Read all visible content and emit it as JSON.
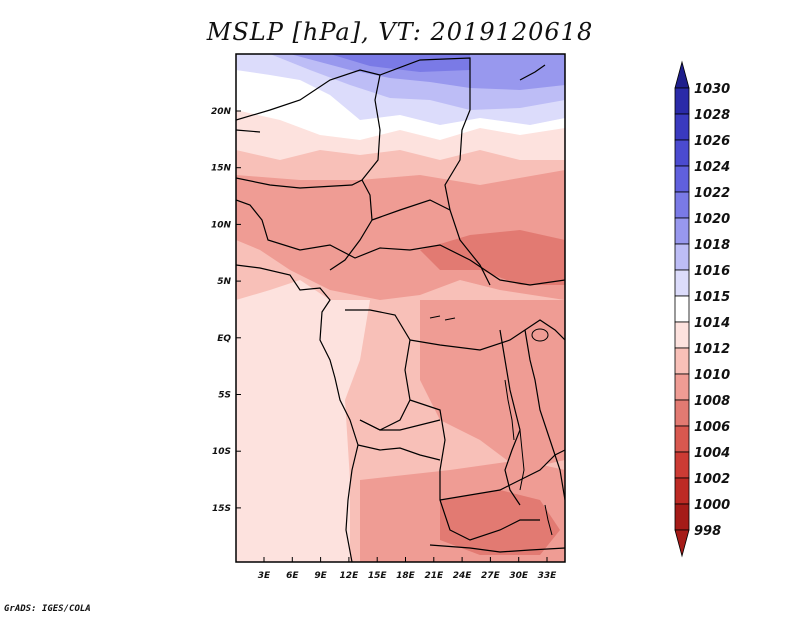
{
  "title": "MSLP [hPa], VT: 2019120618",
  "credit": "GrADS: IGES/COLA",
  "map": {
    "lat_labels": [
      "20N",
      "15N",
      "10N",
      "5N",
      "EQ",
      "5S",
      "10S",
      "15S"
    ],
    "lon_labels": [
      "3E",
      "6E",
      "9E",
      "12E",
      "15E",
      "18E",
      "21E",
      "24E",
      "27E",
      "30E",
      "33E"
    ],
    "high_pressure_region": "north",
    "low_pressure_regions": [
      "central",
      "southeast"
    ]
  },
  "colorbar": {
    "levels": [
      "1030",
      "1028",
      "1026",
      "1024",
      "1022",
      "1020",
      "1018",
      "1016",
      "1015",
      "1014",
      "1012",
      "1010",
      "1008",
      "1006",
      "1004",
      "1002",
      "1000",
      "998"
    ],
    "colors": [
      "#1e1e8c",
      "#2a2aa8",
      "#3a3abf",
      "#4b4bd0",
      "#6060dd",
      "#7a7ae6",
      "#9898ee",
      "#bdbdf6",
      "#dcdcfb",
      "#ffffff",
      "#fde2de",
      "#f8c0b8",
      "#ef9c94",
      "#e27a72",
      "#d8584f",
      "#cc3b34",
      "#bd2a24",
      "#a51b18"
    ]
  }
}
